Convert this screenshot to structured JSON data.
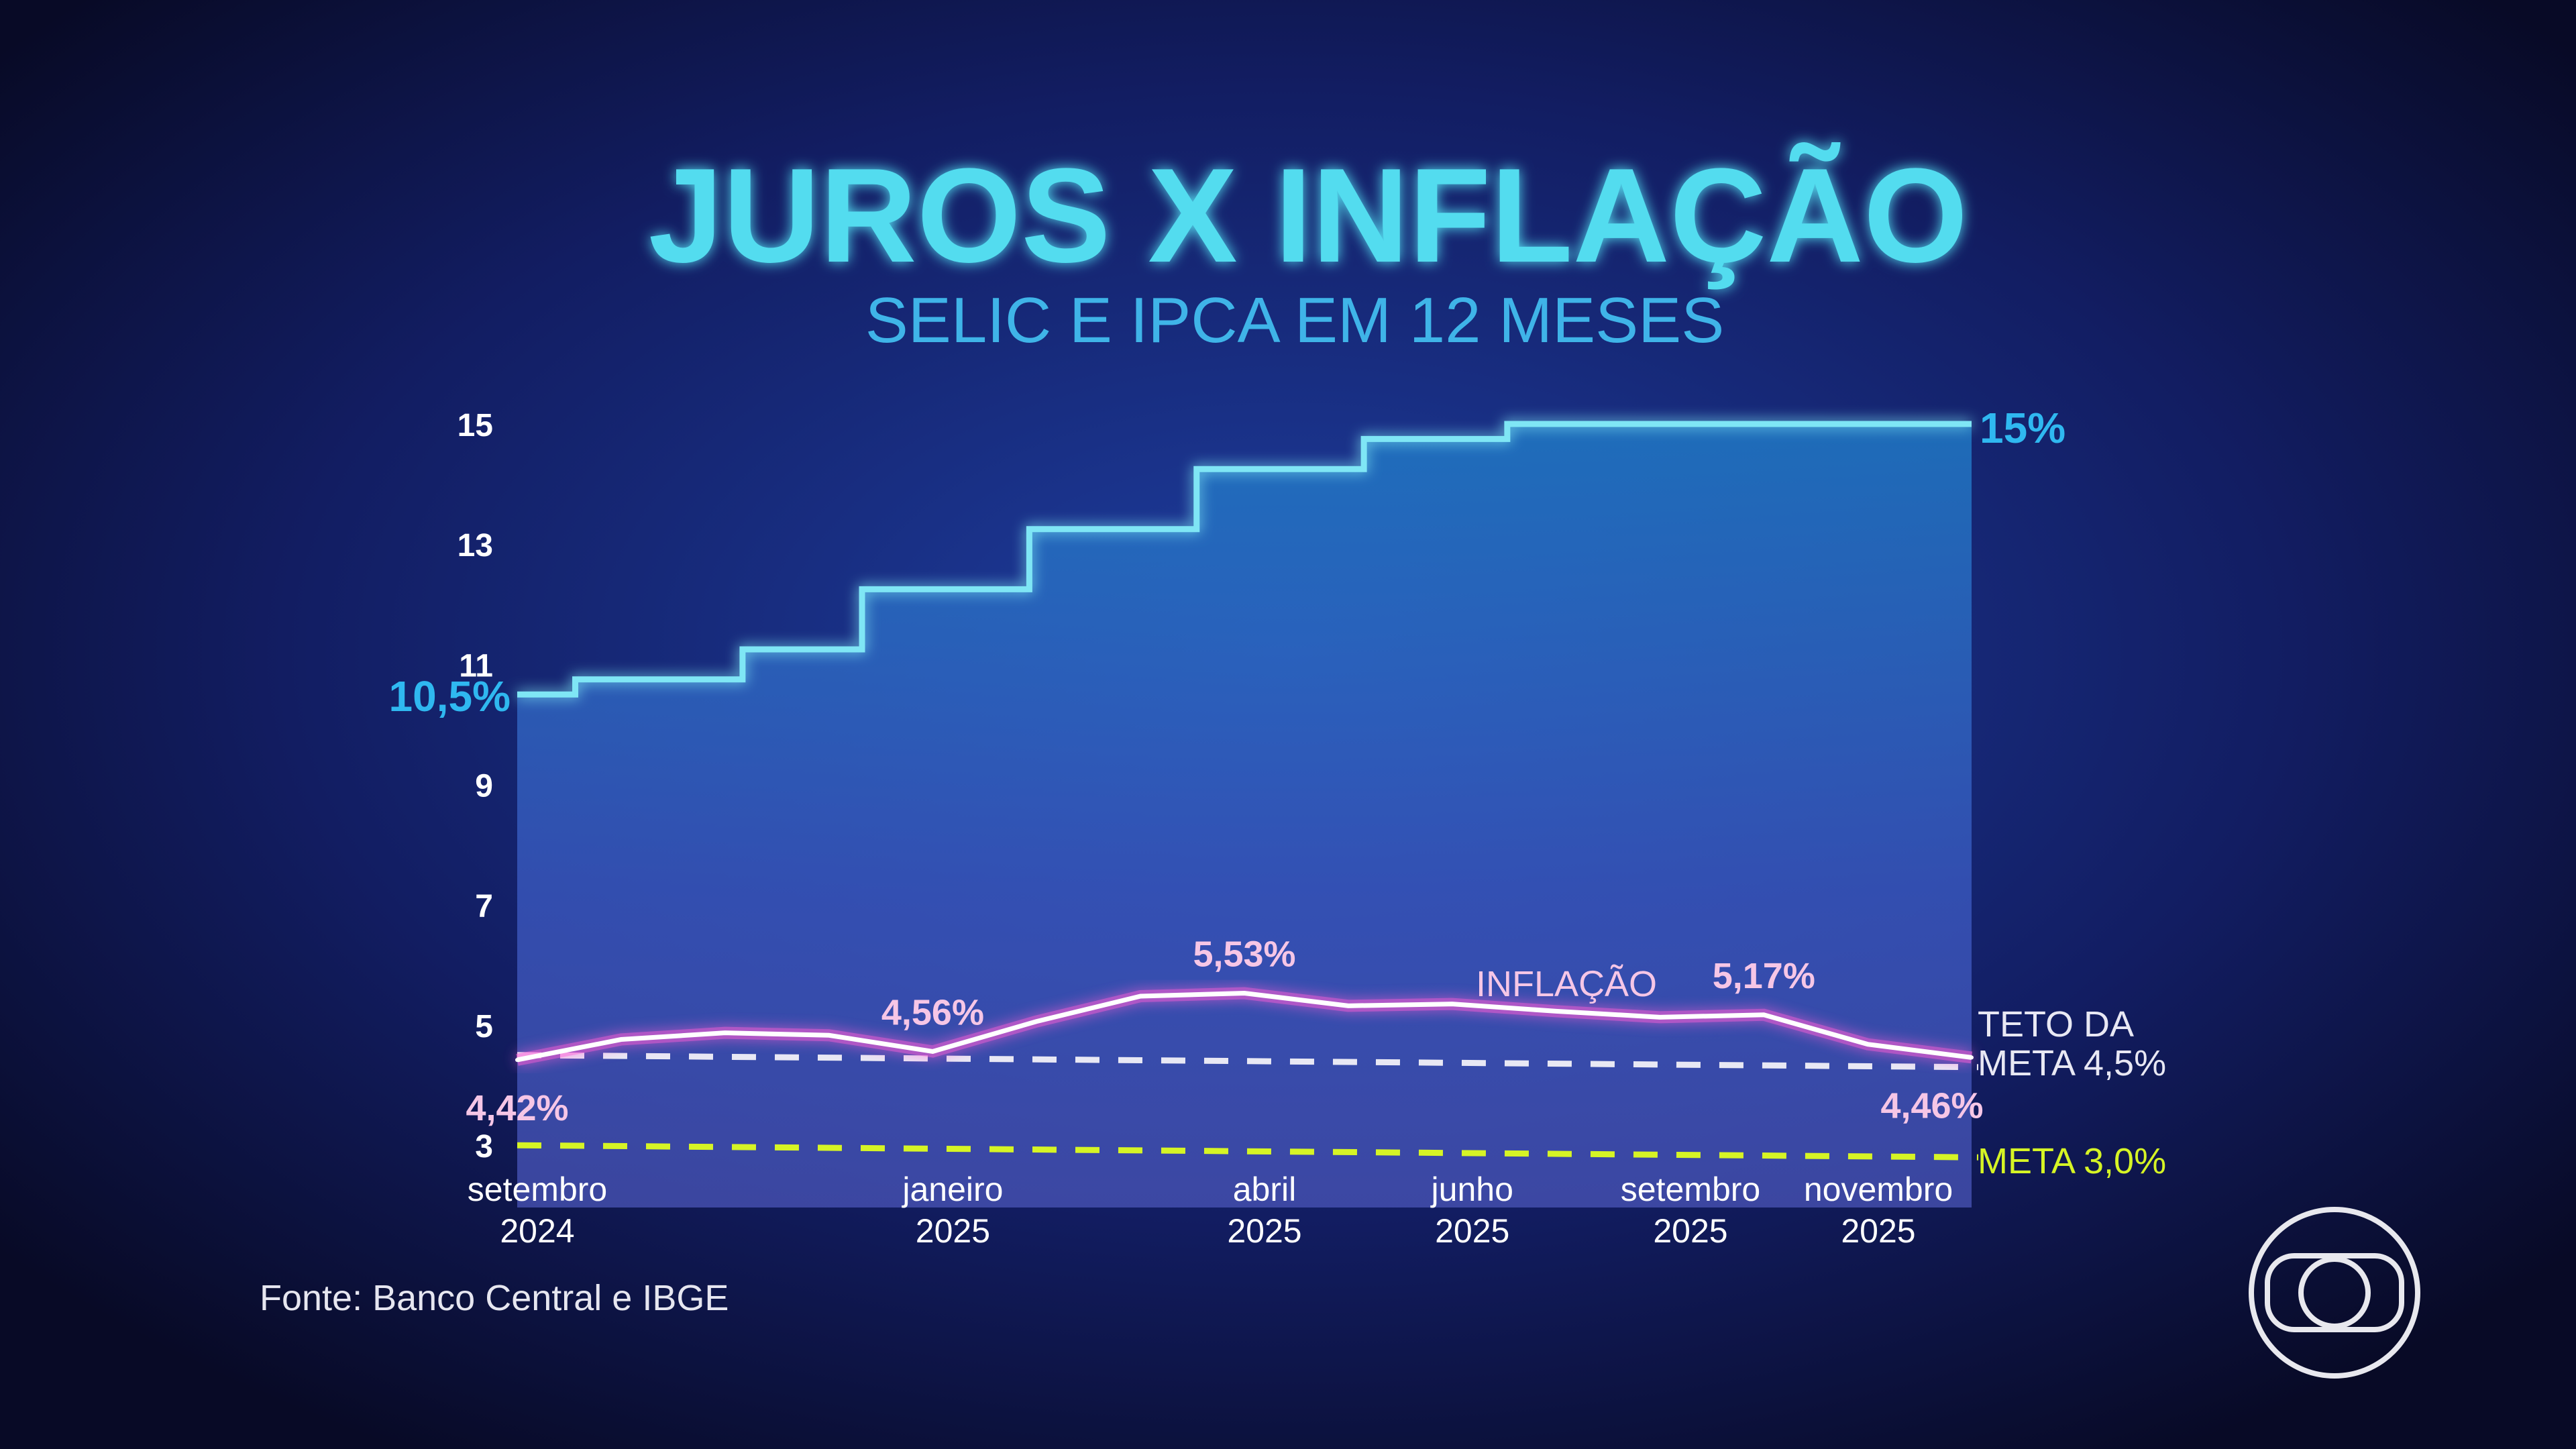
{
  "chart_data": {
    "type": "line",
    "title": "JUROS X INFLAÇÃO",
    "subtitle": "SELIC E IPCA EM 12 MESES",
    "ylim": [
      3,
      15
    ],
    "y_ticks": [
      15,
      13,
      11,
      9,
      7,
      5,
      3
    ],
    "grid": false,
    "x_ticks": [
      {
        "month": "2024-09",
        "line1": "setembro",
        "line2": "2024"
      },
      {
        "month": "2025-01",
        "line1": "janeiro",
        "line2": "2025"
      },
      {
        "month": "2025-04",
        "line1": "abril",
        "line2": "2025"
      },
      {
        "month": "2025-06",
        "line1": "junho",
        "line2": "2025"
      },
      {
        "month": "2025-09",
        "line1": "setembro",
        "line2": "2025"
      },
      {
        "month": "2025-11",
        "line1": "novembro",
        "line2": "2025"
      }
    ],
    "selic": {
      "color": "#7fe6f5",
      "label_color": "#2fb8f0",
      "start_label": "10,5%",
      "end_label": "15%",
      "steps": [
        {
          "date": "2024-09-01",
          "value": 10.5
        },
        {
          "date": "2024-09-18",
          "value": 10.75
        },
        {
          "date": "2024-11-06",
          "value": 11.25
        },
        {
          "date": "2024-12-11",
          "value": 12.25
        },
        {
          "date": "2025-01-29",
          "value": 13.25
        },
        {
          "date": "2025-03-19",
          "value": 14.25
        },
        {
          "date": "2025-05-07",
          "value": 14.75
        },
        {
          "date": "2025-06-18",
          "value": 15.0
        },
        {
          "date": "2025-11-30",
          "value": 15.0
        }
      ]
    },
    "ipca": {
      "name": "INFLAÇÃO",
      "color": "#ffffff",
      "glow": "#ff5fd8",
      "label_color": "#f6c6e6",
      "months": [
        "2024-09",
        "2024-10",
        "2024-11",
        "2024-12",
        "2025-01",
        "2025-02",
        "2025-03",
        "2025-04",
        "2025-05",
        "2025-06",
        "2025-07",
        "2025-08",
        "2025-09",
        "2025-10",
        "2025-11"
      ],
      "values": [
        4.42,
        4.76,
        4.87,
        4.83,
        4.56,
        5.06,
        5.48,
        5.53,
        5.32,
        5.35,
        5.23,
        5.13,
        5.17,
        4.68,
        4.46
      ],
      "labels": [
        {
          "month": "2024-09",
          "text": "4,42%",
          "pos": "below"
        },
        {
          "month": "2025-01",
          "text": "4,56%",
          "pos": "above"
        },
        {
          "month": "2025-04",
          "text": "5,53%",
          "pos": "above"
        },
        {
          "month": "2025-09",
          "text": "5,17%",
          "pos": "above"
        },
        {
          "month": "2025-11",
          "text": "4,46%",
          "pos": "below"
        }
      ]
    },
    "reference_lines": [
      {
        "value": 4.5,
        "label1": "TETO DA",
        "label2": "META 4,5%",
        "color": "#e8e8f4",
        "style": "dashed"
      },
      {
        "value": 3.0,
        "label1": "META 3,0%",
        "label2": "",
        "color": "#d6f425",
        "style": "dashed"
      }
    ]
  },
  "source": "Fonte: Banco Central e IBGE",
  "logo": {
    "name": "globo-logo-icon"
  }
}
